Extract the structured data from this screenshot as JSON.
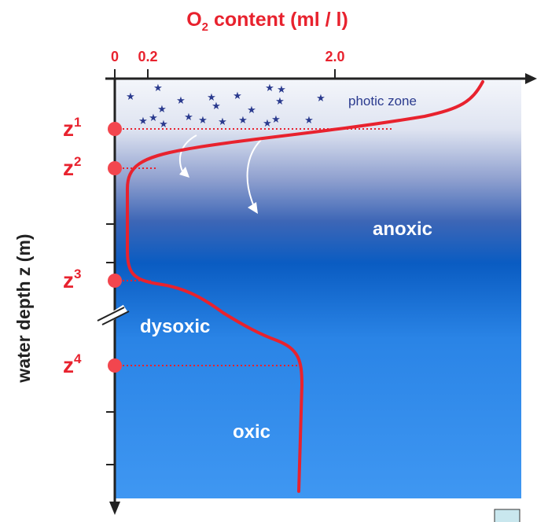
{
  "title": {
    "prefix": "O",
    "subscript": "2",
    "suffix": " content (ml / l)"
  },
  "x_ticks": [
    "0",
    "0.2",
    "2.0"
  ],
  "y_axis_label": "water depth z (m)",
  "depth_markers": [
    {
      "base": "z",
      "sup": "1"
    },
    {
      "base": "z",
      "sup": "2"
    },
    {
      "base": "z",
      "sup": "3"
    },
    {
      "base": "z",
      "sup": "4"
    }
  ],
  "zone_labels": {
    "photic": "photic zone",
    "anoxic": "anoxic",
    "dysoxic": "dysoxic",
    "oxic": "oxic"
  },
  "colors": {
    "accent": "#e8222e",
    "surface_water": "#eef1f8",
    "deep_water": "#0a62c8",
    "bottom_water": "#3d95f0",
    "stars": "#2a3a8e"
  }
}
